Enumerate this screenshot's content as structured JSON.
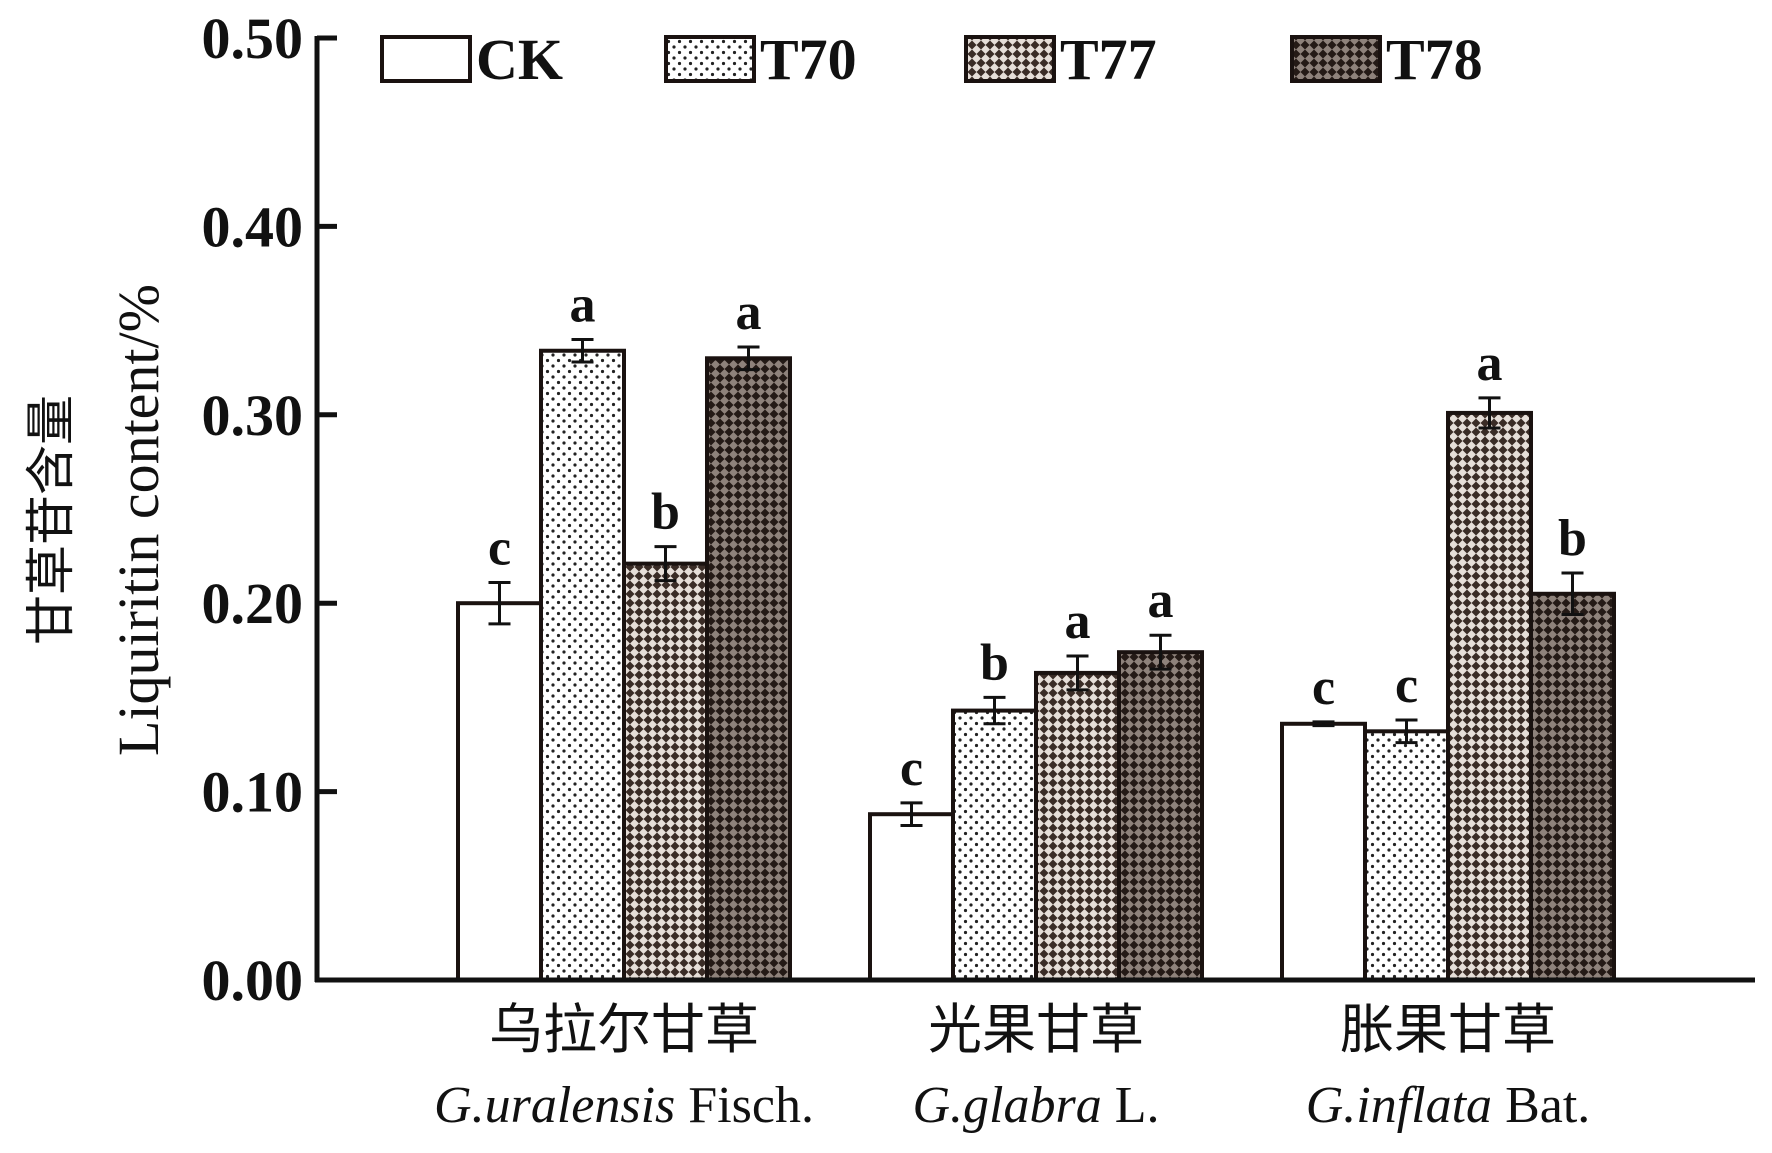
{
  "chart_data": {
    "type": "bar",
    "title": "",
    "ylabel_cn": "甘草苷含量",
    "ylabel": "Liquiritin content/%",
    "xlabel": "",
    "ylim": [
      0,
      0.5
    ],
    "yticks": [
      "0.00",
      "0.10",
      "0.20",
      "0.30",
      "0.40",
      "0.50"
    ],
    "ytick_values": [
      0,
      0.1,
      0.2,
      0.3,
      0.4,
      0.5
    ],
    "grid": false,
    "legend_position": "top",
    "categories": [
      {
        "cn": "乌拉尔甘草",
        "genus": "G.",
        "species": "uralensis",
        "author": " Fisch."
      },
      {
        "cn": "光果甘草",
        "genus": "G.",
        "species": "glabra",
        "author": " L."
      },
      {
        "cn": "胀果甘草",
        "genus": "G.",
        "species": "inflata",
        "author": " Bat."
      }
    ],
    "series": [
      {
        "name": "CK",
        "pattern": "white",
        "values": [
          0.2,
          0.088,
          0.136
        ],
        "errors": [
          0.011,
          0.006,
          0.001
        ],
        "letters": [
          "c",
          "c",
          "c"
        ]
      },
      {
        "name": "T70",
        "pattern": "dots",
        "values": [
          0.334,
          0.143,
          0.132
        ],
        "errors": [
          0.006,
          0.007,
          0.006
        ],
        "letters": [
          "a",
          "b",
          "c"
        ]
      },
      {
        "name": "T77",
        "pattern": "mesh",
        "values": [
          0.221,
          0.163,
          0.301
        ],
        "errors": [
          0.009,
          0.009,
          0.008
        ],
        "letters": [
          "b",
          "a",
          "a"
        ]
      },
      {
        "name": "T78",
        "pattern": "dark",
        "values": [
          0.33,
          0.174,
          0.205
        ],
        "errors": [
          0.006,
          0.009,
          0.011
        ],
        "letters": [
          "a",
          "a",
          "b"
        ]
      }
    ],
    "colors": {
      "axis": "#111111",
      "bar_edge": "#1a1210",
      "mesh_dark": "#2a1f1b",
      "mesh_light": "#c8bfb8"
    }
  }
}
